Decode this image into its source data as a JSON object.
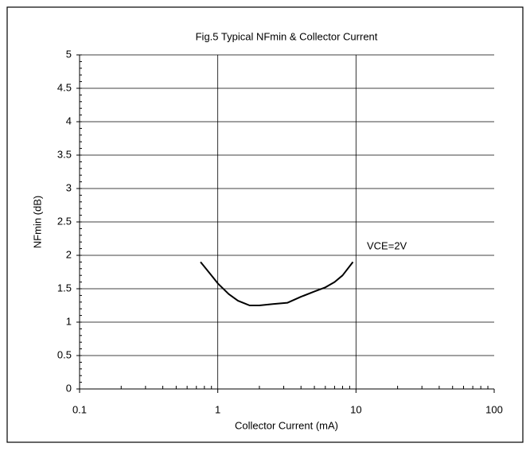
{
  "chart_data": {
    "type": "line",
    "title": "Fig.5 Typical NFmin & Collector Current",
    "xlabel": "Collector Current (mA)",
    "ylabel": "NFmin (dB)",
    "x": [
      0.75,
      0.9,
      1.0,
      1.2,
      1.4,
      1.7,
      2.0,
      2.5,
      3.2,
      4.0,
      5.0,
      6.0,
      7.0,
      8.0,
      9.5
    ],
    "series": [
      {
        "name": "VCE=2V",
        "color": "#000000",
        "values": [
          1.9,
          1.7,
          1.58,
          1.42,
          1.32,
          1.25,
          1.25,
          1.27,
          1.29,
          1.38,
          1.46,
          1.52,
          1.6,
          1.7,
          1.9
        ]
      }
    ],
    "annotation": "VCE=2V",
    "xlim": [
      0.1,
      100
    ],
    "xticks": [
      0.1,
      1,
      10,
      100
    ],
    "xscale": "log",
    "ylim": [
      0,
      5
    ],
    "yticks": [
      0,
      0.5,
      1,
      1.5,
      2,
      2.5,
      3,
      3.5,
      4,
      4.5,
      5
    ],
    "grid": true,
    "minor_ticks": true
  }
}
